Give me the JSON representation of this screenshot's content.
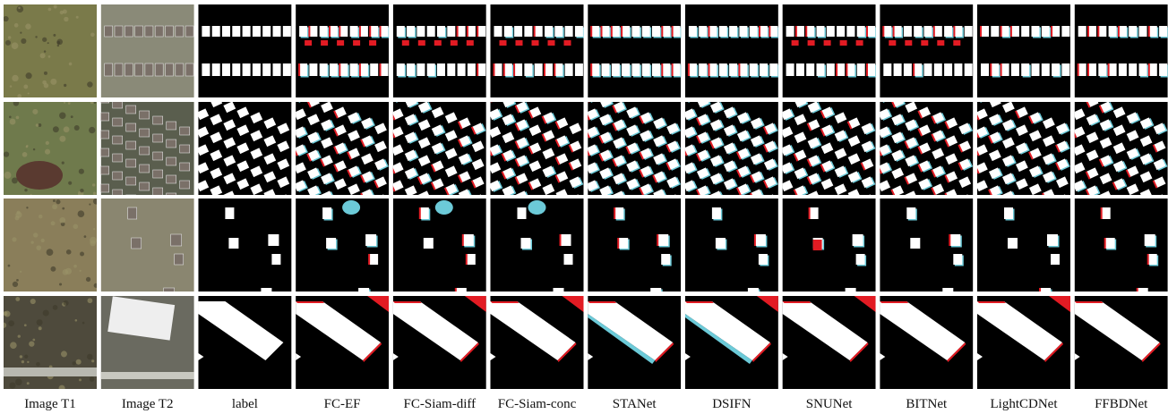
{
  "columns": [
    "Image T1",
    "Image T2",
    "label",
    "FC-EF",
    "FC-Siam-diff",
    "FC-Siam-conc",
    "STANet",
    "DSIFN",
    "SNUNet",
    "BITNet",
    "LightCDNet",
    "FFBDNet"
  ]
}
